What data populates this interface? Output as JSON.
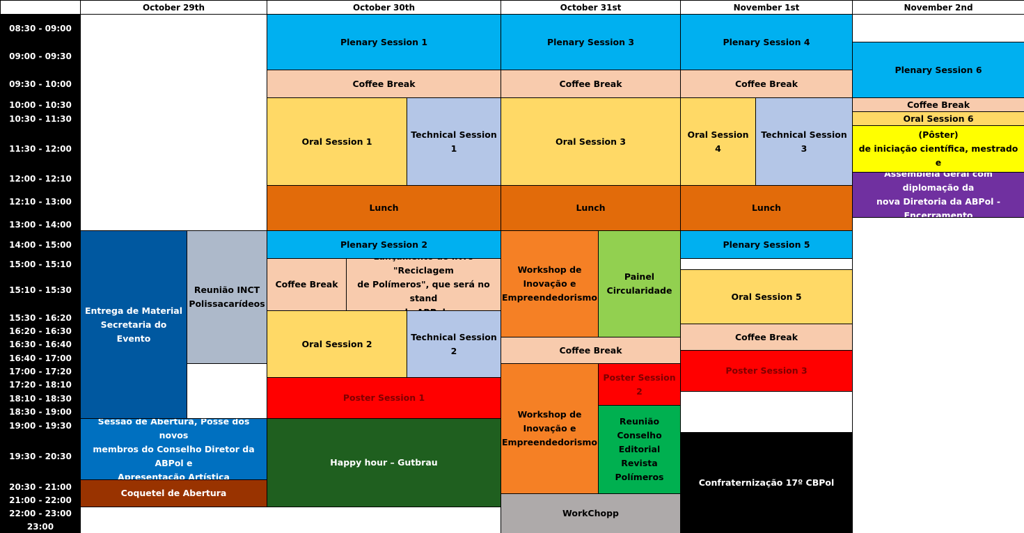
{
  "days": [
    {
      "label": "October 29th"
    },
    {
      "label": "October 30th"
    },
    {
      "label": "October 31st"
    },
    {
      "label": "November 1st"
    },
    {
      "label": "November 2nd"
    }
  ],
  "times": [
    "08:30 - 09:00",
    "09:00 - 09:30",
    "09:30 - 10:00",
    "10:00 - 10:30",
    "10:30 - 11:30",
    "11:30 - 12:00",
    "12:00 - 12:10",
    "12:10 - 13:00",
    "13:00 - 14:00",
    "14:00 - 15:00",
    "15:00 - 15:10",
    "15:10 - 15:30",
    "15:30 - 16:20",
    "16:20 - 16:30",
    "16:30 - 16:40",
    "16:40 - 17:00",
    "17:00 - 17:20",
    "17:20 - 18:10",
    "18:10 - 18:30",
    "18:30 - 19:00",
    "19:00 - 19:30",
    "19:30 - 20:30",
    "20:30 - 21:00",
    "21:00 - 22:00",
    "22:00 - 23:00",
    "23:00"
  ],
  "colors": {
    "light_blue": "#00b0f0",
    "peach": "#f8cbad",
    "yellow": "#ffd966",
    "steel_blue": "#b4c6e7",
    "orange_dark": "#e26b0a",
    "navy": "#0058a0",
    "grey_blue": "#adb9ca",
    "blue": "#0070c0",
    "brown": "#993300",
    "red": "#ff0000",
    "green_dark": "#1f5f1f",
    "orange": "#f58025",
    "light_green": "#92d050",
    "green": "#00b050",
    "grey": "#aeaaaa",
    "black": "#000000",
    "bright_yellow": "#ffff00",
    "purple": "#7030a0"
  },
  "events": [
    {
      "text": "Entrega de Material\nSecretaria do Evento",
      "color": "navy"
    },
    {
      "text": "Reunião INCT\nPolissacarídeos",
      "color": "grey_blue"
    },
    {
      "text": "Sessão de Abertura, Posse dos novos\nmembros do Conselho Diretor da ABPol e\nApresentação Artística",
      "color": "blue"
    },
    {
      "text": "Coquetel de Abertura",
      "color": "brown"
    },
    {
      "text": "Plenary Session 1",
      "color": "light_blue"
    },
    {
      "text": "Coffee Break",
      "color": "peach"
    },
    {
      "text": "Oral Session 1",
      "color": "yellow"
    },
    {
      "text": "Technical Session 1",
      "color": "steel_blue"
    },
    {
      "text": "Lunch",
      "color": "orange_dark"
    },
    {
      "text": "Plenary Session 2",
      "color": "light_blue"
    },
    {
      "text": "Coffee Break",
      "color": "peach"
    },
    {
      "text": "Lançamento do livro \"Reciclagem\nde Polímeros\", que será no stand\nda ABPol",
      "color": "peach"
    },
    {
      "text": "Oral Session 2",
      "color": "yellow"
    },
    {
      "text": "Technical Session 2",
      "color": "steel_blue"
    },
    {
      "text": "Poster Session 1",
      "color": "red"
    },
    {
      "text": "Happy hour – Gutbrau",
      "color": "green_dark"
    },
    {
      "text": "Plenary Session 3",
      "color": "light_blue"
    },
    {
      "text": "Coffee Break",
      "color": "peach"
    },
    {
      "text": "Oral Session 3",
      "color": "yellow"
    },
    {
      "text": "Lunch",
      "color": "orange_dark"
    },
    {
      "text": "Workshop de\nInovação e\nEmpreendedorismo",
      "color": "orange"
    },
    {
      "text": "Painel\nCircularidade",
      "color": "light_green"
    },
    {
      "text": "Coffee Break",
      "color": "peach"
    },
    {
      "text": "Workshop de\nInovação e\nEmpreendedorismo",
      "color": "orange"
    },
    {
      "text": "Poster Session 2",
      "color": "red"
    },
    {
      "text": "Reunião Conselho\nEditorial Revista\nPolímeros",
      "color": "green"
    },
    {
      "text": "WorkChopp",
      "color": "grey"
    },
    {
      "text": "Plenary Session 4",
      "color": "light_blue"
    },
    {
      "text": "Coffee Break",
      "color": "peach"
    },
    {
      "text": "Oral Session 4",
      "color": "yellow"
    },
    {
      "text": "Technical Session 3",
      "color": "steel_blue"
    },
    {
      "text": "Lunch",
      "color": "orange_dark"
    },
    {
      "text": "Plenary Session 5",
      "color": "light_blue"
    },
    {
      "text": "Oral Session 5",
      "color": "yellow"
    },
    {
      "text": "Coffee Break",
      "color": "peach"
    },
    {
      "text": "Poster Session 3",
      "color": "red"
    },
    {
      "text": "Confraternização 17º CBPol",
      "color": "black"
    },
    {
      "text": "Plenary Session 6",
      "color": "light_blue"
    },
    {
      "text": "Coffee Break",
      "color": "peach"
    },
    {
      "text": "Oral Session 6",
      "color": "yellow"
    },
    {
      "text": "Premiação melhor trabalhos (Pôster)\nde iniciação científica, mestrado e\ndoutorado",
      "color": "bright_yellow"
    },
    {
      "text": "Assembleia Geral com diplomação da\nnova Diretoria da ABPol -\nEncerramento",
      "color": "purple"
    }
  ]
}
